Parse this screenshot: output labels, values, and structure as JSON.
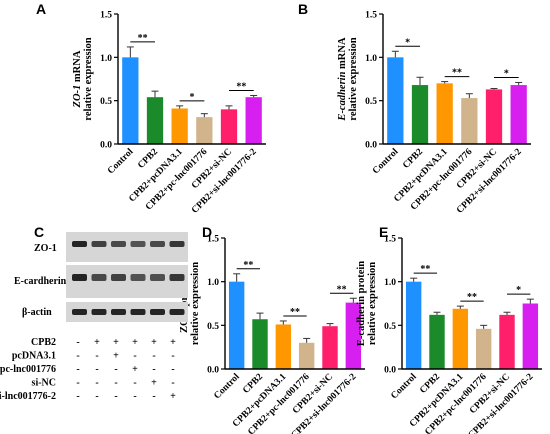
{
  "panels": [
    "A",
    "B",
    "C",
    "D",
    "E"
  ],
  "colors": [
    "#1e90ff",
    "#1a8a2a",
    "#ff9800",
    "#d2b48c",
    "#ff1f6b",
    "#d71ff0"
  ],
  "chart_data": [
    {
      "panel": "A",
      "type": "bar",
      "categories": [
        "Control",
        "CPB2",
        "CPB2+pcDNA3.1",
        "CPB2+pc-lnc001776",
        "CPB2+si-NC",
        "CPB2+si-lnc001776-2"
      ],
      "values": [
        1.0,
        0.54,
        0.41,
        0.31,
        0.4,
        0.54
      ],
      "errors": [
        0.12,
        0.07,
        0.03,
        0.04,
        0.04,
        0.02
      ],
      "ylabel_italic": "ZO-1",
      "ylabel_rest": " mRNA",
      "ylabel2": "relative expression",
      "ylim": [
        0,
        1.5
      ],
      "yticks": [
        "0.0",
        "0.5",
        "1.0",
        "1.5"
      ],
      "sig": [
        {
          "from": 0,
          "to": 1,
          "label": "**"
        },
        {
          "from": 2,
          "to": 3,
          "label": "*"
        },
        {
          "from": 4,
          "to": 5,
          "label": "**"
        }
      ]
    },
    {
      "panel": "B",
      "type": "bar",
      "categories": [
        "Control",
        "CPB2",
        "CPB2+pcDNA3.1",
        "CPB2+pc-lnc001776",
        "CPB2+si-NC",
        "CPB2+si-lnc001776-2"
      ],
      "values": [
        1.0,
        0.68,
        0.7,
        0.53,
        0.63,
        0.68
      ],
      "errors": [
        0.07,
        0.09,
        0.02,
        0.05,
        0.01,
        0.03
      ],
      "ylabel_italic": "E-cadherin",
      "ylabel_rest": " mRNA",
      "ylabel2": "relative expression",
      "ylim": [
        0,
        1.5
      ],
      "yticks": [
        "0.0",
        "0.5",
        "1.0",
        "1.5"
      ],
      "sig": [
        {
          "from": 0,
          "to": 1,
          "label": "*"
        },
        {
          "from": 2,
          "to": 3,
          "label": "**"
        },
        {
          "from": 4,
          "to": 5,
          "label": "*"
        }
      ]
    },
    {
      "panel": "D",
      "type": "bar",
      "categories": [
        "Control",
        "CPB2",
        "CPB2+pcDNA3.1",
        "CPB2+pc-lnc001776",
        "CPB2+si-NC",
        "CPB2+si-lnc001776-2"
      ],
      "values": [
        1.0,
        0.57,
        0.51,
        0.3,
        0.49,
        0.76
      ],
      "errors": [
        0.09,
        0.07,
        0.04,
        0.05,
        0.03,
        0.05
      ],
      "ylabel_italic": "",
      "ylabel_rest": "ZO-1 protein",
      "ylabel2": "relative expression",
      "ylim": [
        0,
        1.5
      ],
      "yticks": [
        "0.0",
        "0.5",
        "1.0",
        "1.5"
      ],
      "sig": [
        {
          "from": 0,
          "to": 1,
          "label": "**"
        },
        {
          "from": 2,
          "to": 3,
          "label": "**"
        },
        {
          "from": 4,
          "to": 5,
          "label": "**"
        }
      ]
    },
    {
      "panel": "E",
      "type": "bar",
      "categories": [
        "Control",
        "CPB2",
        "CPB2+pcDNA3.1",
        "CPB2+pc-lnc001776",
        "CPB2+si-NC",
        "CPB2+si-lnc001776-2"
      ],
      "values": [
        1.0,
        0.62,
        0.69,
        0.46,
        0.62,
        0.75
      ],
      "errors": [
        0.04,
        0.03,
        0.03,
        0.04,
        0.03,
        0.05
      ],
      "ylabel_italic": "",
      "ylabel_rest": "E-cadherin protein",
      "ylabel2": "relative expression",
      "ylim": [
        0,
        1.5
      ],
      "yticks": [
        "0.0",
        "0.5",
        "1.0",
        "1.5"
      ],
      "sig": [
        {
          "from": 0,
          "to": 1,
          "label": "**"
        },
        {
          "from": 2,
          "to": 3,
          "label": "**"
        },
        {
          "from": 4,
          "to": 5,
          "label": "*"
        }
      ]
    }
  ],
  "blot": {
    "rows": [
      "ZO-1",
      "E-cardherin",
      "β-actin"
    ],
    "conditions": [
      {
        "label": "CPB2",
        "signs": [
          "-",
          "+",
          "+",
          "+",
          "+",
          "+"
        ]
      },
      {
        "label": "pcDNA3.1",
        "signs": [
          "-",
          "-",
          "+",
          "-",
          "-",
          "-"
        ]
      },
      {
        "label": "pc-lnc001776",
        "signs": [
          "-",
          "-",
          "-",
          "+",
          "-",
          "-"
        ]
      },
      {
        "label": "si-NC",
        "signs": [
          "-",
          "-",
          "-",
          "-",
          "+",
          "-"
        ]
      },
      {
        "label": "si-lnc001776-2",
        "signs": [
          "-",
          "-",
          "-",
          "-",
          "-",
          "+"
        ]
      }
    ]
  }
}
